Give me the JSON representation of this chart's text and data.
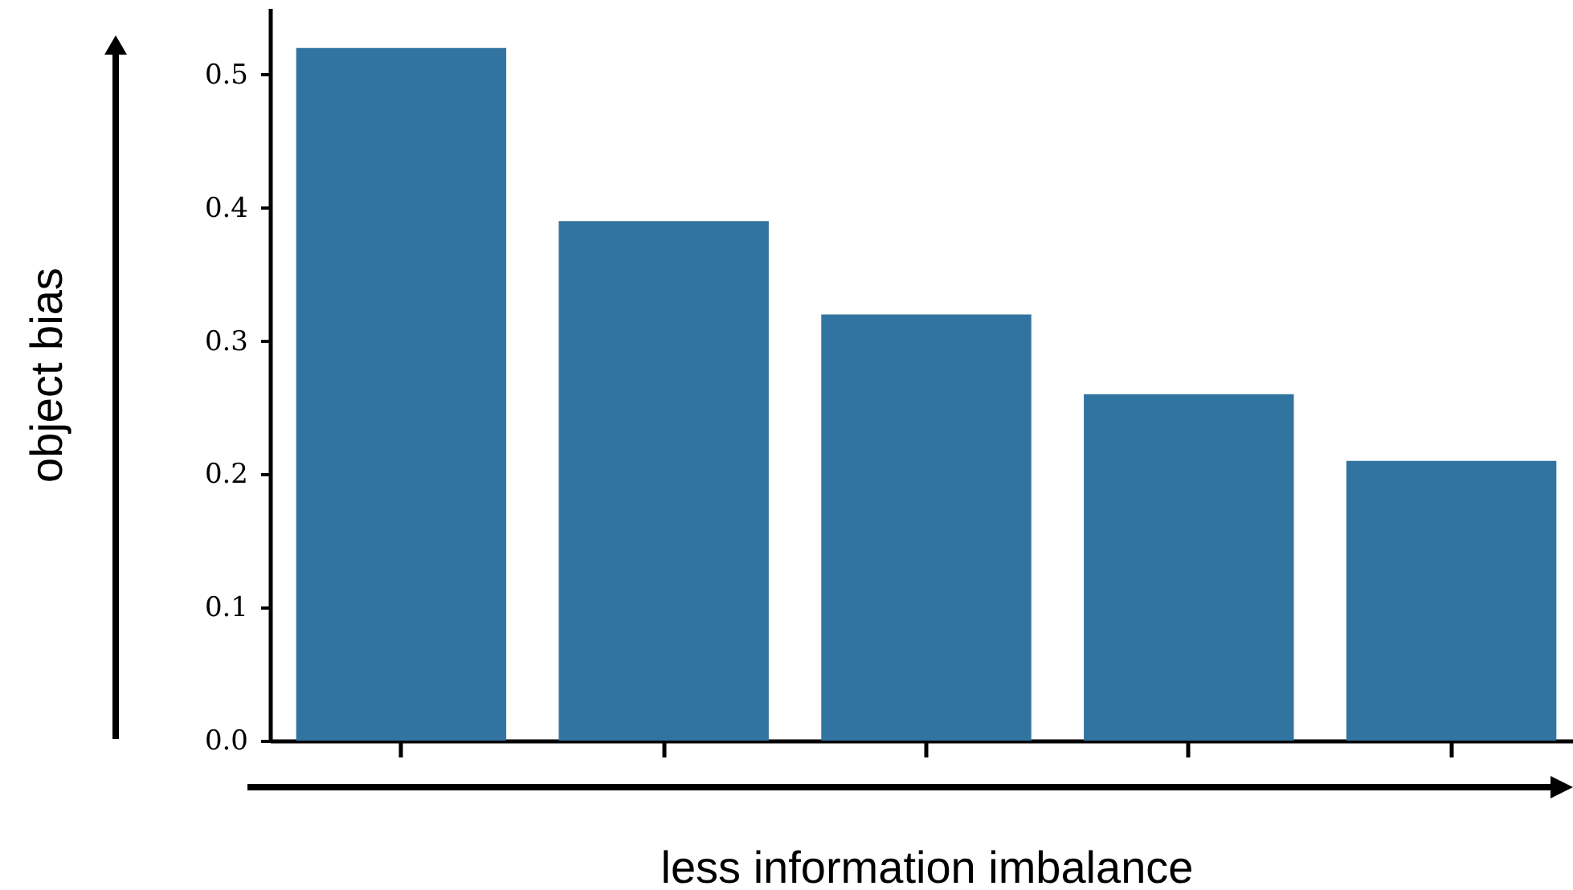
{
  "chart_data": {
    "type": "bar",
    "xlabel": "less information imbalance",
    "ylabel": "object bias",
    "categories": [
      null,
      null,
      null,
      null,
      null
    ],
    "values": [
      0.52,
      0.39,
      0.32,
      0.26,
      0.21
    ],
    "color": "#3274a1",
    "ylim": [
      0,
      0.55
    ],
    "yticks": [
      {
        "value": 0,
        "label": "0.0"
      },
      {
        "value": 0.1,
        "label": "0.1"
      },
      {
        "value": 0.2,
        "label": "0.2"
      },
      {
        "value": 0.3,
        "label": "0.3"
      },
      {
        "value": 0.4,
        "label": "0.4"
      },
      {
        "value": 0.5,
        "label": "0.5"
      }
    ],
    "grid": false,
    "tick_labels": "y"
  }
}
